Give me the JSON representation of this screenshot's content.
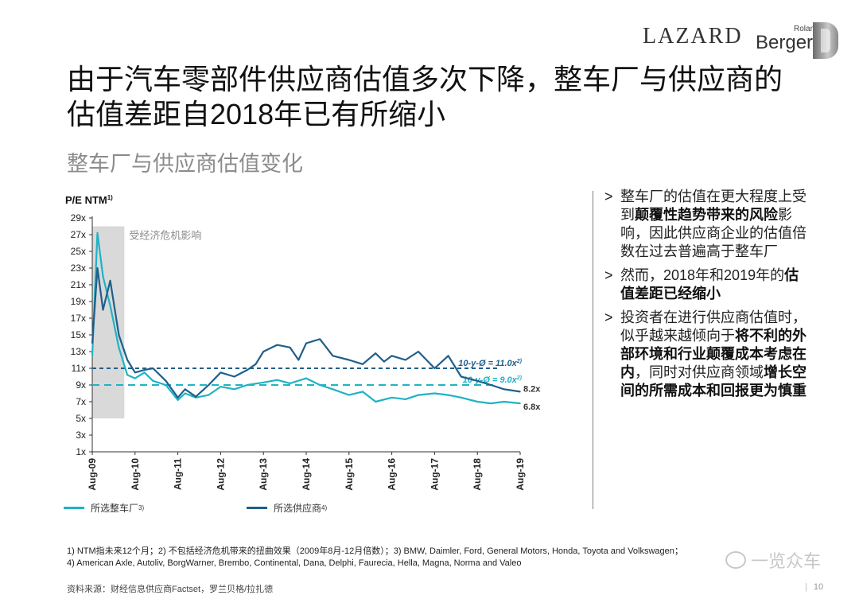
{
  "header": {
    "logo_lazard": "LAZARD",
    "logo_roland": "Roland",
    "logo_berger": "Berger"
  },
  "title": "由于汽车零部件供应商估值多次下降，整车厂与供应商的估值差距自2018年已有所缩小",
  "subtitle": "整车厂与供应商估值变化",
  "chart_data": {
    "type": "line",
    "ylabel": "P/E NTM",
    "ylabel_sup": "1)",
    "y_ticks": [
      "29x",
      "27x",
      "25x",
      "23x",
      "21x",
      "19x",
      "17x",
      "15x",
      "13x",
      "11x",
      "9x",
      "7x",
      "5x",
      "3x",
      "1x"
    ],
    "ylim": [
      1,
      29
    ],
    "x_ticks": [
      "Aug-09",
      "Aug-10",
      "Aug-11",
      "Aug-12",
      "Aug-13",
      "Aug-14",
      "Aug-15",
      "Aug-16",
      "Aug-17",
      "Aug-18",
      "Aug-19"
    ],
    "xlim": [
      2009.58,
      2019.58
    ],
    "shaded_region": {
      "x": [
        2009.58,
        2010.33
      ],
      "y": [
        5,
        28
      ],
      "label": "受经济危机影响"
    },
    "reference_lines": [
      {
        "label": "10-y-Ø = 11.0x",
        "sup": "2)",
        "value": 11.0,
        "color": "#1f5f8b"
      },
      {
        "label": "10-y-Ø = 9.0x",
        "sup": "2)",
        "value": 9.0,
        "color": "#1fb3c4"
      }
    ],
    "end_labels": [
      {
        "text": "8.2x",
        "value": 8.2
      },
      {
        "text": "6.8x",
        "value": 6.8
      }
    ],
    "series": [
      {
        "name": "所选整车厂",
        "sup": "3)",
        "color": "#1fb3c4",
        "x": [
          2009.58,
          2009.7,
          2009.83,
          2010.0,
          2010.2,
          2010.4,
          2010.58,
          2010.8,
          2011.0,
          2011.3,
          2011.58,
          2011.75,
          2012.0,
          2012.3,
          2012.58,
          2012.9,
          2013.2,
          2013.58,
          2013.9,
          2014.2,
          2014.58,
          2014.9,
          2015.2,
          2015.58,
          2015.9,
          2016.2,
          2016.58,
          2016.9,
          2017.2,
          2017.58,
          2017.9,
          2018.2,
          2018.58,
          2018.9,
          2019.2,
          2019.58
        ],
        "y": [
          12.5,
          27.2,
          22.0,
          18.5,
          13.5,
          10.2,
          9.8,
          10.5,
          9.5,
          9.0,
          7.2,
          8.0,
          7.5,
          7.8,
          8.8,
          8.5,
          9.0,
          9.3,
          9.6,
          9.2,
          9.8,
          9.0,
          8.5,
          7.8,
          8.2,
          7.0,
          7.5,
          7.3,
          7.8,
          8.0,
          7.8,
          7.5,
          7.0,
          6.8,
          7.0,
          6.8
        ]
      },
      {
        "name": "所选供应商",
        "sup": "4)",
        "color": "#1f5f8b",
        "x": [
          2009.58,
          2009.7,
          2009.83,
          2010.0,
          2010.2,
          2010.4,
          2010.58,
          2010.8,
          2011.0,
          2011.3,
          2011.58,
          2011.75,
          2012.0,
          2012.3,
          2012.58,
          2012.9,
          2013.2,
          2013.4,
          2013.58,
          2013.9,
          2014.2,
          2014.4,
          2014.58,
          2014.9,
          2015.2,
          2015.58,
          2015.9,
          2016.2,
          2016.4,
          2016.58,
          2016.9,
          2017.2,
          2017.58,
          2017.9,
          2018.2,
          2018.58,
          2018.9,
          2019.2,
          2019.58
        ],
        "y": [
          14.0,
          23.0,
          18.0,
          21.5,
          15.0,
          12.0,
          10.5,
          10.8,
          11.0,
          9.5,
          7.5,
          8.5,
          7.6,
          9.0,
          10.5,
          10.0,
          10.8,
          11.5,
          13.0,
          13.8,
          13.5,
          12.0,
          14.0,
          14.5,
          12.5,
          12.0,
          11.5,
          12.8,
          11.8,
          12.5,
          12.0,
          13.0,
          11.0,
          12.5,
          10.0,
          9.5,
          9.0,
          8.5,
          8.2
        ]
      }
    ],
    "legend": "bottom"
  },
  "legend_items": [
    {
      "name": "所选整车厂",
      "sup": "3)",
      "color": "#1fb3c4"
    },
    {
      "name": "所选供应商",
      "sup": "4)",
      "color": "#1f5f8b"
    }
  ],
  "bullets": [
    {
      "marker": ">",
      "parts": [
        {
          "text": "整车厂的估值在更大程度上受到",
          "bold": false
        },
        {
          "text": "颠覆性趋势带来的风险",
          "bold": true
        },
        {
          "text": "影响，因此供应商企业的估值倍数在过去普遍高于整车厂",
          "bold": false
        }
      ]
    },
    {
      "marker": ">",
      "parts": [
        {
          "text": "然而，2018年和2019年的",
          "bold": false
        },
        {
          "text": "估值差距已经缩小",
          "bold": true
        }
      ]
    },
    {
      "marker": ">",
      "parts": [
        {
          "text": "投资者在进行供应商估值时，似乎越来越倾向于",
          "bold": false
        },
        {
          "text": "将不利的外部环境和行业颠覆成本考虑在内",
          "bold": true
        },
        {
          "text": "，同时对供应商领域",
          "bold": false
        },
        {
          "text": "增长空间的所需成本和回报更为慎重",
          "bold": true
        }
      ]
    }
  ],
  "footnotes": {
    "line1": "1) NTM指未来12个月；2) 不包括经济危机带来的扭曲效果（2009年8月-12月倍数）；3) BMW, Daimler, Ford, General Motors, Honda, Toyota and Volkswagen；",
    "line2": "4) American Axle, Autoliv, BorgWarner, Brembo, Continental, Dana, Delphi, Faurecia, Hella, Magna, Norma and Valeo"
  },
  "source": "资料来源：财经信息供应商Factset，罗兰贝格/拉扎德",
  "page_number": "10",
  "watermark": "一览众车"
}
